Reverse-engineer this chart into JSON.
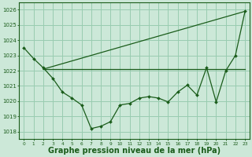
{
  "bg_color": "#cce8d8",
  "grid_color": "#99ccb0",
  "line_color": "#1a5c1a",
  "marker_color": "#1a5c1a",
  "xlabel": "Graphe pression niveau de la mer (hPa)",
  "xlabel_fontsize": 7,
  "ylim": [
    1017.5,
    1026.5
  ],
  "xlim": [
    -0.5,
    23.5
  ],
  "yticks": [
    1018,
    1019,
    1020,
    1021,
    1022,
    1023,
    1024,
    1025,
    1026
  ],
  "xticks": [
    0,
    1,
    2,
    3,
    4,
    5,
    6,
    7,
    8,
    9,
    10,
    11,
    12,
    13,
    14,
    15,
    16,
    17,
    18,
    19,
    20,
    21,
    22,
    23
  ],
  "series1": [
    1023.5,
    1022.8,
    1022.2,
    1021.5,
    1020.6,
    1020.2,
    1019.75,
    1018.2,
    1018.35,
    1018.65,
    1019.75,
    1019.85,
    1020.2,
    1020.3,
    1020.2,
    1019.95,
    1020.6,
    1021.05,
    1020.4,
    1022.2,
    1019.95,
    1022.0,
    1023.0,
    1025.9
  ],
  "series2_x": [
    2,
    23
  ],
  "series2_y": [
    1022.1,
    1022.1
  ],
  "series3_x": [
    2,
    23
  ],
  "series3_y": [
    1022.1,
    1025.9
  ]
}
